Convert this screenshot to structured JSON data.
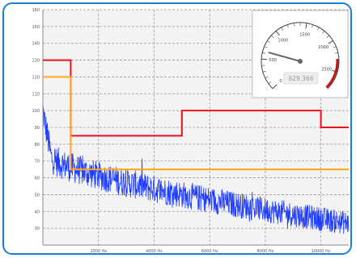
{
  "widget": {
    "colors": {
      "border": "#1a7fd6",
      "spectrum": "#1f3dff",
      "limit_red": "#e8101a",
      "limit_orange": "#ffa518"
    }
  },
  "gauge": {
    "value": 629.366,
    "value_text": "629.366",
    "min": 0,
    "max": 2800,
    "tick_labels": [
      "0",
      "500",
      "1000",
      "1500",
      "2000",
      "2500"
    ],
    "danger_from": 2300,
    "needle_color": "#666666",
    "danger_color": "#cc1111"
  },
  "chart_data": {
    "type": "line",
    "title": "",
    "xlabel": "",
    "ylabel": "",
    "xlim": [
      0,
      11000
    ],
    "ylim": [
      20,
      160
    ],
    "grid": true,
    "xticks": [
      {
        "value": 2000,
        "label": "2000 Hz"
      },
      {
        "value": 4000,
        "label": "4000 Hz"
      },
      {
        "value": 6000,
        "label": "6000 Hz"
      },
      {
        "value": 8000,
        "label": "8000 Hz"
      },
      {
        "value": 10000,
        "label": "10000 Hz"
      }
    ],
    "yticks": [
      {
        "value": 30,
        "label": "30"
      },
      {
        "value": 40,
        "label": "40"
      },
      {
        "value": 50,
        "label": "50"
      },
      {
        "value": 60,
        "label": "60"
      },
      {
        "value": 70,
        "label": "70"
      },
      {
        "value": 80,
        "label": "80"
      },
      {
        "value": 90,
        "label": "90"
      },
      {
        "value": 100,
        "label": "100"
      },
      {
        "value": 110,
        "label": "110"
      },
      {
        "value": 120,
        "label": "120"
      },
      {
        "value": 130,
        "label": "130"
      },
      {
        "value": 140,
        "label": "140"
      },
      {
        "value": 150,
        "label": "150"
      },
      {
        "value": 160,
        "label": "160"
      }
    ],
    "series": [
      {
        "kind": "noise-spectrum",
        "color": "#1f3dff",
        "x_start": 0,
        "x_end": 11000,
        "start_level": 100,
        "settle_level": 72,
        "end_level": 33,
        "amplitude": 7
      },
      {
        "kind": "step",
        "color": "#e8101a",
        "points": [
          [
            0,
            130
          ],
          [
            1000,
            130
          ],
          [
            1000,
            85
          ],
          [
            5000,
            85
          ],
          [
            5000,
            100
          ],
          [
            10000,
            100
          ],
          [
            10000,
            90
          ],
          [
            11000,
            90
          ]
        ]
      },
      {
        "kind": "step",
        "color": "#ffa518",
        "points": [
          [
            0,
            120
          ],
          [
            1000,
            120
          ],
          [
            1000,
            65
          ],
          [
            11000,
            65
          ]
        ]
      }
    ]
  }
}
